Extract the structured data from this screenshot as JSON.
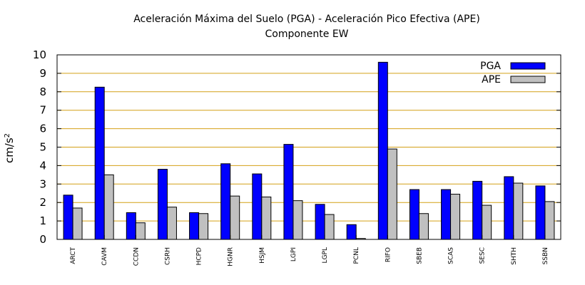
{
  "chart_data": {
    "type": "bar",
    "title": "Aceleración Máxima del Suelo (PGA) -  Aceleración Pico Efectiva (APE)",
    "subtitle": "Componente EW",
    "xlabel": "",
    "ylabel": "cm/s",
    "ylabel_superscript": "2",
    "ylim": [
      0,
      10
    ],
    "yticks": [
      "0",
      "1",
      "2",
      "3",
      "4",
      "5",
      "6",
      "7",
      "8",
      "9",
      "10"
    ],
    "grid": "horizontal",
    "legend_position": "top-right",
    "categories": [
      "ARCT",
      "CAVM",
      "CCDN",
      "CSRH",
      "HCPD",
      "HGNR",
      "HSJM",
      "LGPI",
      "LGPL",
      "PCNL",
      "RIFO",
      "SBEB",
      "SCAS",
      "SESC",
      "SHTH",
      "SSBN"
    ],
    "series": [
      {
        "name": "PGA",
        "color": "#0000ff",
        "values": [
          2.4,
          8.25,
          1.45,
          3.8,
          1.45,
          4.1,
          3.55,
          5.15,
          1.9,
          0.8,
          9.6,
          2.7,
          2.7,
          3.15,
          3.4,
          2.9
        ]
      },
      {
        "name": "APE",
        "color": "#c0c0c0",
        "values": [
          1.7,
          3.5,
          0.9,
          1.75,
          1.4,
          2.35,
          2.3,
          2.1,
          1.35,
          0.05,
          4.9,
          1.4,
          2.45,
          1.85,
          3.05,
          2.05
        ]
      }
    ],
    "grid_color": "#d4a017",
    "axis_color": "#000000",
    "bar_outline_color": "#000000"
  }
}
